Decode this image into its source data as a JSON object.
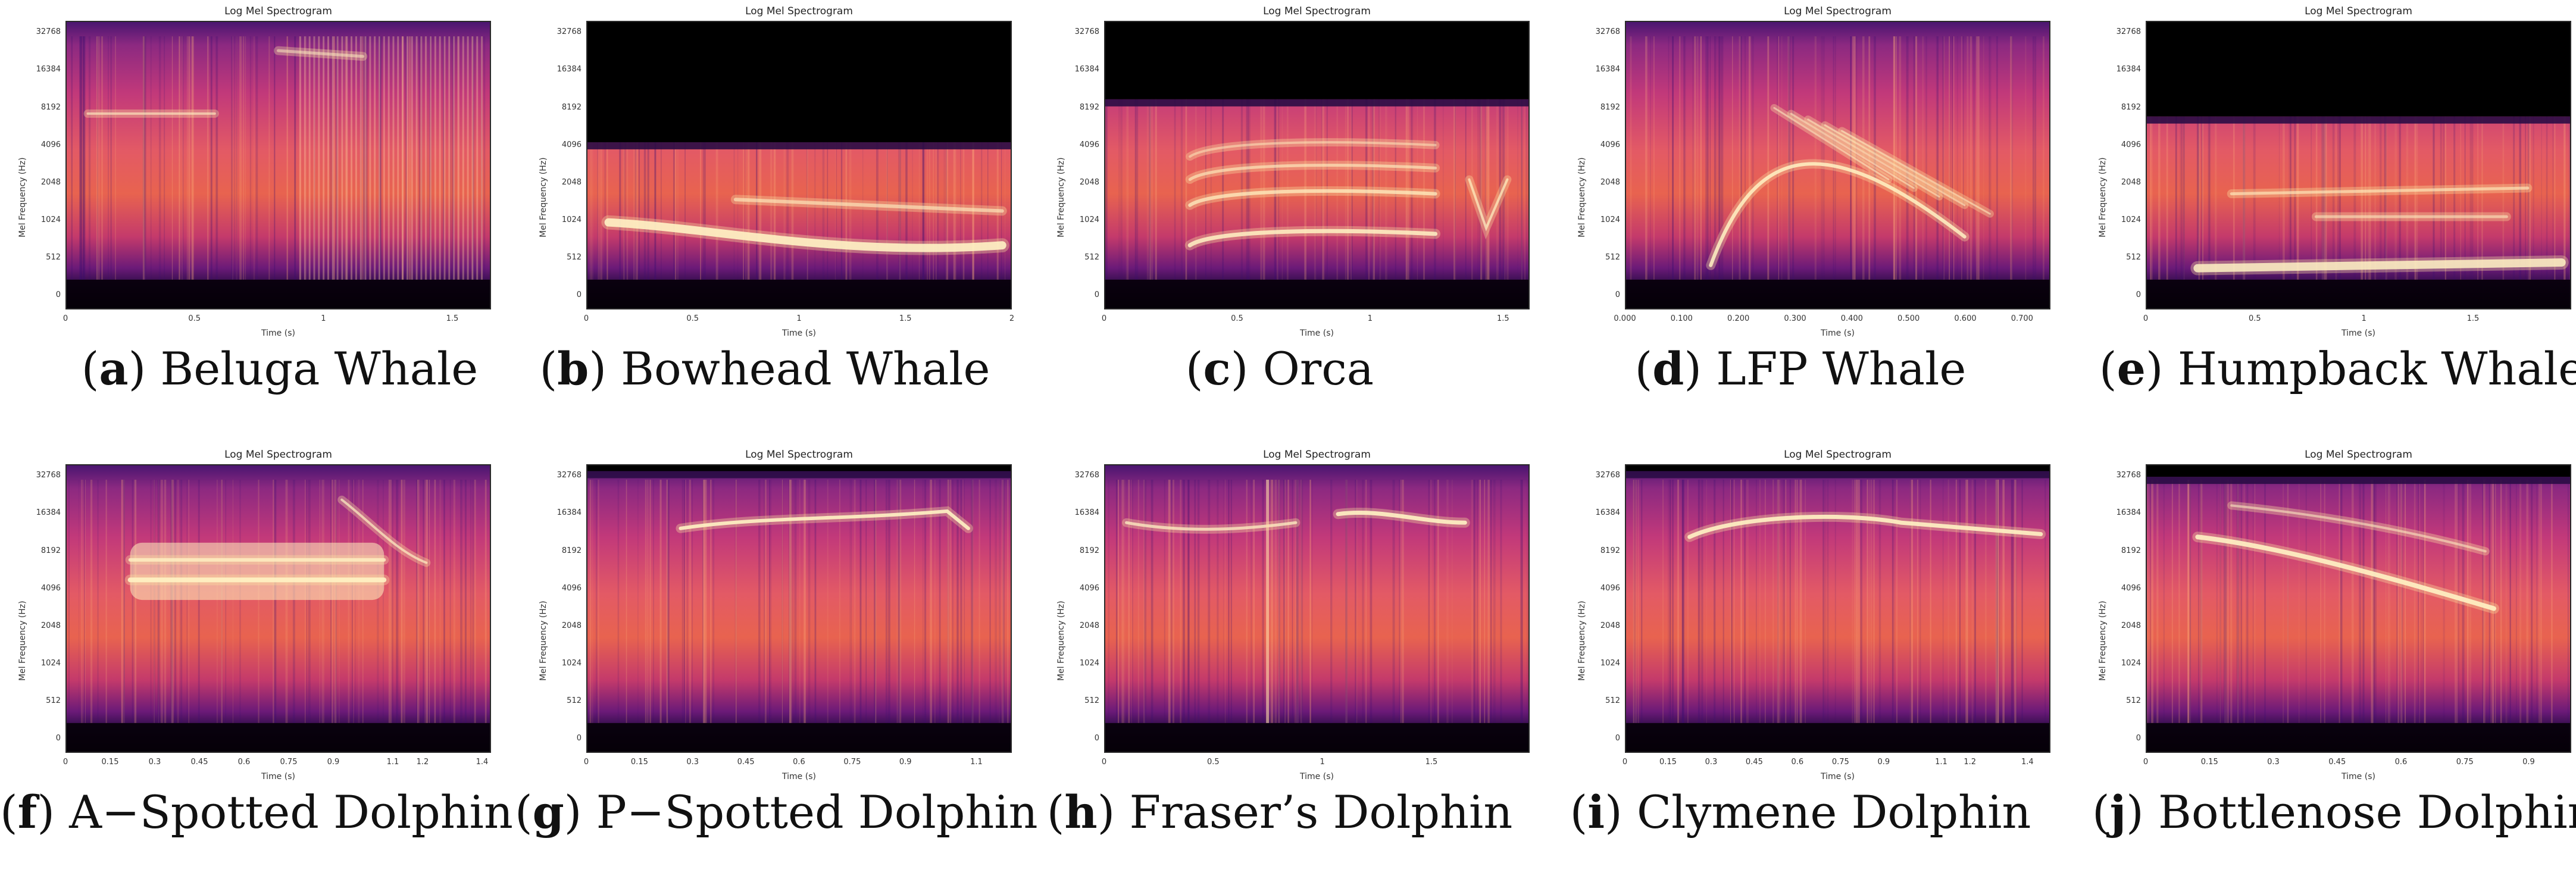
{
  "chart_data": [
    {
      "type": "heatmap",
      "panel": "a",
      "caption_letter": "a",
      "caption_text": "Beluga Whale",
      "title": "Log Mel Spectrogram",
      "xlabel": "Time (s)",
      "ylabel": "Mel Frequency (Hz)",
      "y_ticks": [
        "0",
        "512",
        "1024",
        "2048",
        "4096",
        "8192",
        "16384",
        "32768"
      ],
      "x_ticks": [
        "0",
        "0.5",
        "1",
        "1.5"
      ],
      "xlim": [
        0,
        1.65
      ],
      "black_top_fraction": 0,
      "features": "broadband vertical clicks, faint tonal lines near 8192 Hz and 26000 Hz",
      "colormap": [
        "#000004",
        "#3b0f70",
        "#8c2981",
        "#de4968",
        "#fe9f6d",
        "#fcfdbf"
      ]
    },
    {
      "type": "heatmap",
      "panel": "b",
      "caption_letter": "b",
      "caption_text": "Bowhead Whale",
      "title": "Log Mel Spectrogram",
      "xlabel": "Time (s)",
      "ylabel": "Mel Frequency (Hz)",
      "y_ticks": [
        "0",
        "512",
        "1024",
        "2048",
        "4096",
        "8192",
        "16384",
        "32768"
      ],
      "x_ticks": [
        "0",
        "0.5",
        "1",
        "1.5",
        "2"
      ],
      "xlim": [
        0,
        2
      ],
      "black_top_fraction": 0.42,
      "features": "low-frequency tonal band near 700-1200 Hz",
      "colormap": [
        "#000004",
        "#3b0f70",
        "#8c2981",
        "#de4968",
        "#fe9f6d",
        "#fcfdbf"
      ]
    },
    {
      "type": "heatmap",
      "panel": "c",
      "caption_letter": "c",
      "caption_text": "Orca",
      "title": "Log Mel Spectrogram",
      "xlabel": "Time (s)",
      "ylabel": "Mel Frequency (Hz)",
      "y_ticks": [
        "0",
        "512",
        "1024",
        "2048",
        "4096",
        "8192",
        "16384",
        "32768"
      ],
      "x_ticks": [
        "0",
        "0.5",
        "1",
        "1.5"
      ],
      "xlim": [
        0,
        1.6
      ],
      "black_top_fraction": 0.27,
      "features": "harmonic stack at ~1500, 2500, 3500 Hz",
      "colormap": [
        "#000004",
        "#3b0f70",
        "#8c2981",
        "#de4968",
        "#fe9f6d",
        "#fcfdbf"
      ]
    },
    {
      "type": "heatmap",
      "panel": "d",
      "caption_letter": "d",
      "caption_text": "LFP Whale",
      "title": "Log Mel Spectrogram",
      "xlabel": "Time (s)",
      "ylabel": "Mel Frequency (Hz)",
      "y_ticks": [
        "0",
        "512",
        "1024",
        "2048",
        "4096",
        "8192",
        "16384",
        "32768"
      ],
      "x_ticks": [
        "0.000",
        "0.100",
        "0.200",
        "0.300",
        "0.400",
        "0.500",
        "0.600",
        "0.700"
      ],
      "xlim": [
        0,
        0.75
      ],
      "black_top_fraction": 0,
      "features": "rising and descending harmonic sweeps",
      "colormap": [
        "#000004",
        "#3b0f70",
        "#8c2981",
        "#de4968",
        "#fe9f6d",
        "#fcfdbf"
      ]
    },
    {
      "type": "heatmap",
      "panel": "e",
      "caption_letter": "e",
      "caption_text": "Humpback Whale",
      "title": "Log Mel Spectrogram",
      "xlabel": "Time (s)",
      "ylabel": "Mel Frequency (Hz)",
      "y_ticks": [
        "0",
        "512",
        "1024",
        "2048",
        "4096",
        "8192",
        "16384",
        "32768"
      ],
      "x_ticks": [
        "0",
        "0.5",
        "1",
        "1.5"
      ],
      "xlim": [
        0,
        1.95
      ],
      "black_top_fraction": 0.33,
      "features": "low tonal band near 600-800 Hz and harmonics",
      "colormap": [
        "#000004",
        "#3b0f70",
        "#8c2981",
        "#de4968",
        "#fe9f6d",
        "#fcfdbf"
      ]
    },
    {
      "type": "heatmap",
      "panel": "f",
      "caption_letter": "f",
      "caption_text": "A−Spotted Dolphin",
      "title": "Log Mel Spectrogram",
      "xlabel": "Time (s)",
      "ylabel": "Mel Frequency (Hz)",
      "y_ticks": [
        "0",
        "512",
        "1024",
        "2048",
        "4096",
        "8192",
        "16384",
        "32768"
      ],
      "x_ticks": [
        "0",
        "0.15",
        "0.3",
        "0.45",
        "0.6",
        "0.75",
        "0.9",
        "1.1",
        "1.2",
        "1.4"
      ],
      "xlim": [
        0,
        1.43
      ],
      "black_top_fraction": 0,
      "features": "bright whistle band 5000-8000 Hz between 0.2 and 0.9 s",
      "colormap": [
        "#000004",
        "#3b0f70",
        "#8c2981",
        "#de4968",
        "#fe9f6d",
        "#fcfdbf"
      ]
    },
    {
      "type": "heatmap",
      "panel": "g",
      "caption_letter": "g",
      "caption_text": "P−Spotted Dolphin",
      "title": "Log Mel Spectrogram",
      "xlabel": "Time (s)",
      "ylabel": "Mel Frequency (Hz)",
      "y_ticks": [
        "0",
        "512",
        "1024",
        "2048",
        "4096",
        "8192",
        "16384",
        "32768"
      ],
      "x_ticks": [
        "0",
        "0.15",
        "0.3",
        "0.45",
        "0.6",
        "0.75",
        "0.9",
        "1.1"
      ],
      "xlim": [
        0,
        1.2
      ],
      "black_top_fraction": 0.02,
      "features": "whistle contour near 14000-17000 Hz",
      "colormap": [
        "#000004",
        "#3b0f70",
        "#8c2981",
        "#de4968",
        "#fe9f6d",
        "#fcfdbf"
      ]
    },
    {
      "type": "heatmap",
      "panel": "h",
      "caption_letter": "h",
      "caption_text": "Fraser’s Dolphin",
      "title": "Log Mel Spectrogram",
      "xlabel": "Time (s)",
      "ylabel": "Mel Frequency (Hz)",
      "y_ticks": [
        "0",
        "512",
        "1024",
        "2048",
        "4096",
        "8192",
        "16384",
        "32768"
      ],
      "x_ticks": [
        "0",
        "0.5",
        "1",
        "1.5"
      ],
      "xlim": [
        0,
        1.95
      ],
      "black_top_fraction": 0,
      "features": "whistle contour near 14000-17000 Hz",
      "colormap": [
        "#000004",
        "#3b0f70",
        "#8c2981",
        "#de4968",
        "#fe9f6d",
        "#fcfdbf"
      ]
    },
    {
      "type": "heatmap",
      "panel": "i",
      "caption_letter": "i",
      "caption_text": "Clymene Dolphin",
      "title": "Log Mel Spectrogram",
      "xlabel": "Time (s)",
      "ylabel": "Mel Frequency (Hz)",
      "y_ticks": [
        "0",
        "512",
        "1024",
        "2048",
        "4096",
        "8192",
        "16384",
        "32768"
      ],
      "x_ticks": [
        "0",
        "0.15",
        "0.3",
        "0.45",
        "0.6",
        "0.75",
        "0.9",
        "1.1",
        "1.2",
        "1.4"
      ],
      "xlim": [
        0,
        1.48
      ],
      "black_top_fraction": 0.02,
      "features": "whistle contour near 14000-16000 Hz",
      "colormap": [
        "#000004",
        "#3b0f70",
        "#8c2981",
        "#de4968",
        "#fe9f6d",
        "#fcfdbf"
      ]
    },
    {
      "type": "heatmap",
      "panel": "j",
      "caption_letter": "j",
      "caption_text": "Bottlenose Dolphin",
      "title": "Log Mel Spectrogram",
      "xlabel": "Time (s)",
      "ylabel": "Mel Frequency (Hz)",
      "y_ticks": [
        "0",
        "512",
        "1024",
        "2048",
        "4096",
        "8192",
        "16384",
        "32768"
      ],
      "x_ticks": [
        "0",
        "0.15",
        "0.3",
        "0.45",
        "0.6",
        "0.75",
        "0.9"
      ],
      "xlim": [
        0,
        1.0
      ],
      "black_top_fraction": 0.04,
      "features": "descending whistle from ~10000 Hz to ~3500 Hz",
      "colormap": [
        "#000004",
        "#3b0f70",
        "#8c2981",
        "#de4968",
        "#fe9f6d",
        "#fcfdbf"
      ]
    }
  ]
}
